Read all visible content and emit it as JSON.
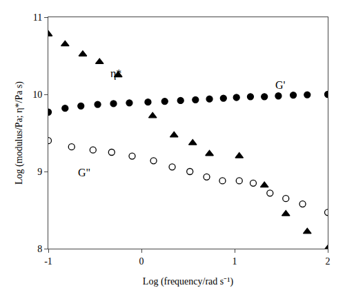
{
  "chart_data": {
    "type": "scatter",
    "xlabel": "Log (frequency/rad s⁻¹)",
    "ylabel": "Log (modulus/Pa; η*/Pa s)",
    "xlim": [
      -1,
      2
    ],
    "ylim": [
      8,
      11
    ],
    "xticks": [
      -1,
      0,
      1,
      2
    ],
    "yticks": [
      8,
      9,
      10,
      11
    ],
    "grid": false,
    "series": [
      {
        "marker": "circle",
        "color": "#000000",
        "x": [
          -1.0,
          -0.82,
          -0.65,
          -0.47,
          -0.3,
          -0.13,
          0.07,
          0.25,
          0.42,
          0.58,
          0.73,
          0.88,
          1.02,
          1.17,
          1.32,
          1.47,
          1.63,
          1.78,
          2.0
        ],
        "values": [
          9.77,
          9.82,
          9.85,
          9.87,
          9.88,
          9.89,
          9.9,
          9.91,
          9.92,
          9.93,
          9.94,
          9.95,
          9.96,
          9.97,
          9.97,
          9.98,
          9.99,
          9.995,
          10.0
        ]
      },
      {
        "marker": "open_circle",
        "color": "#000000",
        "x": [
          -1.0,
          -0.75,
          -0.52,
          -0.32,
          -0.1,
          0.13,
          0.33,
          0.52,
          0.7,
          0.87,
          1.05,
          1.2,
          1.38,
          1.55,
          1.73,
          2.0
        ],
        "values": [
          9.4,
          9.32,
          9.28,
          9.25,
          9.2,
          9.14,
          9.06,
          9.0,
          8.93,
          8.88,
          8.88,
          8.85,
          8.72,
          8.65,
          8.58,
          8.47
        ]
      },
      {
        "marker": "triangle",
        "color": "#000000",
        "x": [
          -1.0,
          -0.82,
          -0.63,
          -0.45,
          -0.25,
          0.12,
          0.35,
          0.55,
          0.73,
          1.05,
          1.32,
          1.55,
          1.78,
          2.0
        ],
        "values": [
          10.78,
          10.65,
          10.52,
          10.42,
          10.25,
          9.72,
          9.47,
          9.37,
          9.23,
          9.2,
          8.82,
          8.45,
          8.22,
          8.0
        ]
      }
    ],
    "annotations": [
      {
        "text": "G'",
        "x": 1.42,
        "y": 10.03
      },
      {
        "text": "G\"",
        "x": -0.7,
        "y": 9.08
      },
      {
        "text": "η*",
        "x": -0.35,
        "y": 10.17
      }
    ]
  }
}
